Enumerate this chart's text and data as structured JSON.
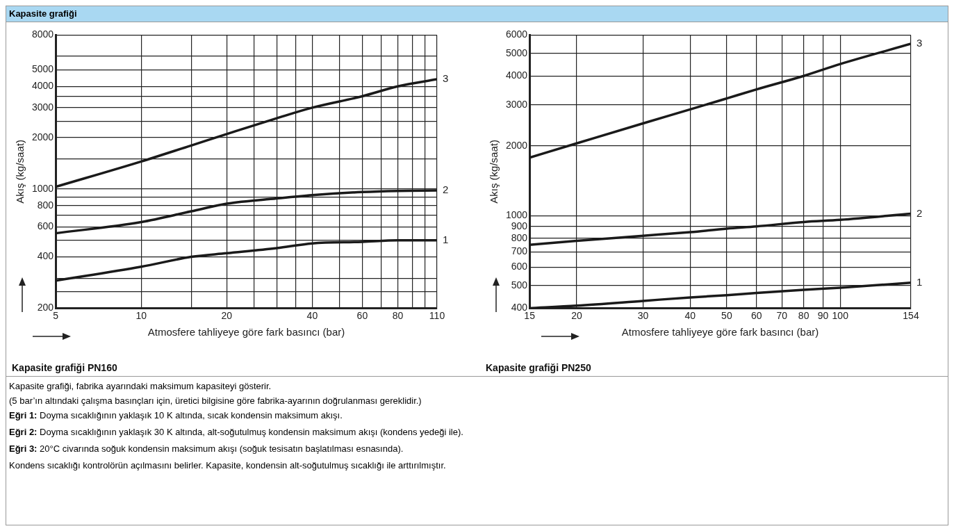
{
  "chart_data": [
    {
      "type": "line",
      "title": "Kapasite grafiği PN160",
      "xlabel": "Atmosfere tahliyeye göre fark basıncı (bar)",
      "ylabel": "Akış (kg/saat)",
      "annotations": [
        "Kapasite grafiği"
      ],
      "log": "xy",
      "grid": true,
      "marker": "none",
      "line_style": "solid",
      "xlim": [
        5,
        110
      ],
      "xticks": [
        5,
        10,
        {
          "value": 15,
          "label": null
        },
        20,
        {
          "value": 25,
          "label": null
        },
        {
          "value": 30,
          "label": null
        },
        {
          "value": 35,
          "label": null
        },
        40,
        {
          "value": 50,
          "label": null
        },
        60,
        {
          "value": 70,
          "label": null
        },
        80,
        {
          "value": 90,
          "label": null
        },
        {
          "value": 100,
          "label": null
        },
        110
      ],
      "ylim": [
        200,
        8000
      ],
      "yticks": [
        200,
        {
          "value": 250,
          "label": null
        },
        {
          "value": 300,
          "label": null
        },
        400,
        {
          "value": 500,
          "label": null
        },
        600,
        {
          "value": 700,
          "label": null
        },
        800,
        {
          "value": 900,
          "label": null
        },
        1000,
        {
          "value": 1500,
          "label": null
        },
        2000,
        {
          "value": 2500,
          "label": null
        },
        3000,
        {
          "value": 3500,
          "label": null
        },
        4000,
        5000,
        {
          "value": 6000,
          "label": null
        },
        8000
      ],
      "x": [
        5,
        10,
        15,
        20,
        30,
        40,
        60,
        80,
        110
      ],
      "series": [
        {
          "name": "3",
          "color": "#1a1a1a",
          "values": [
            1030,
            1450,
            1800,
            2100,
            2600,
            3000,
            3500,
            4000,
            4400
          ]
        },
        {
          "name": "2",
          "color": "#1a1a1a",
          "values": [
            550,
            640,
            740,
            820,
            880,
            920,
            960,
            975,
            980
          ]
        },
        {
          "name": "1",
          "color": "#1a1a1a",
          "values": [
            290,
            350,
            400,
            420,
            450,
            480,
            490,
            500,
            500
          ]
        }
      ]
    },
    {
      "type": "line",
      "title": "Kapasite grafiği PN250",
      "xlabel": "Atmosfere tahliyeye göre fark basıncı (bar)",
      "ylabel": "Akış (kg/saat)",
      "log": "xy",
      "grid": true,
      "marker": "none",
      "line_style": "solid",
      "annotations": [
        "Kapasite grafiği, fabrika ayarındaki maksimum kapasiteyi gösterir.",
        "(5 bar’ın altındaki çalışma basınçları için, üretici bilgisine göre fabrika-ayarının doğrulanması gereklidir.)",
        "Eğri 1: Doyma sıcaklığının yaklaşık 10 K altında, sıcak kondensin maksimum akışı.",
        "Eğri 2: Doyma sıcaklığının yaklaşık 30 K altında, alt-soğutulmuş kondensin maksimum akışı (kondens yedeği ile).",
        "Eğri 3: 20°C civarında soğuk kondensin maksimum akışı (soğuk tesisatın başlatılması esnasında).",
        "Kondens sıcaklığı kontrolörün açılmasını belirler. Kapasite, kondensin alt-soğutulmuş sıcaklığı ile arttırılmıştır."
      ],
      "xlim": [
        15,
        154
      ],
      "xticks": [
        15,
        20,
        30,
        40,
        50,
        60,
        70,
        80,
        90,
        100,
        154
      ],
      "ylim": [
        400,
        6000
      ],
      "yticks": [
        400,
        500,
        600,
        700,
        800,
        900,
        1000,
        2000,
        3000,
        4000,
        5000,
        6000
      ],
      "x": [
        15,
        20,
        30,
        40,
        50,
        60,
        80,
        100,
        154
      ],
      "series": [
        {
          "name": "3",
          "color": "#1a1a1a",
          "values": [
            1780,
            2050,
            2500,
            2870,
            3200,
            3500,
            4000,
            4500,
            5500
          ]
        },
        {
          "name": "2",
          "color": "#1a1a1a",
          "values": [
            750,
            780,
            820,
            850,
            880,
            900,
            940,
            960,
            1020
          ]
        },
        {
          "name": "1",
          "color": "#1a1a1a",
          "values": [
            400,
            410,
            430,
            445,
            455,
            465,
            480,
            490,
            515
          ]
        }
      ]
    }
  ]
}
